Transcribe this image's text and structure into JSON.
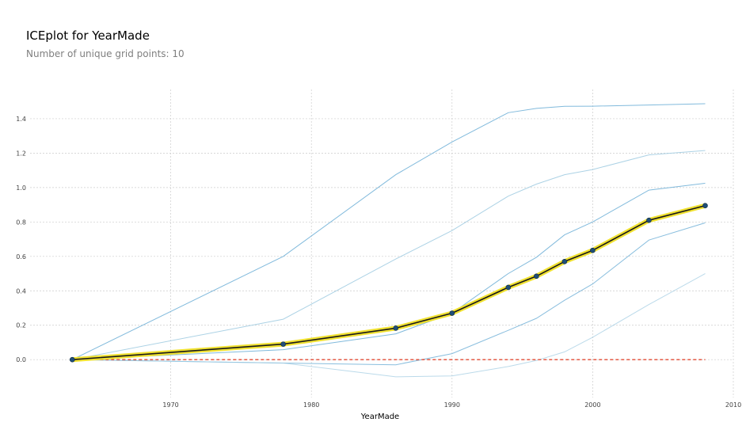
{
  "header": {
    "title": "ICEplot for YearMade",
    "subtitle": "Number of unique grid points: 10"
  },
  "chart_data": {
    "type": "line",
    "title": "ICEplot for YearMade",
    "subtitle": "Number of unique grid points: 10",
    "xlabel": "YearMade",
    "ylabel": "",
    "xlim": [
      1960,
      2010
    ],
    "ylim": [
      -0.22,
      1.57
    ],
    "x_ticks": [
      1970,
      1980,
      1990,
      2000,
      2010
    ],
    "y_ticks": [
      0.0,
      0.2,
      0.4,
      0.6,
      0.8,
      1.0,
      1.2,
      1.4
    ],
    "y_tick_labels": [
      "0.0",
      "0.2",
      "0.4",
      "0.6",
      "0.8",
      "1.0",
      "1.2",
      "1.4"
    ],
    "grid": true,
    "x": [
      1963,
      1978,
      1986,
      1990,
      1994,
      1996,
      1998,
      2000,
      2004,
      2008
    ],
    "series": [
      {
        "values": [
          0.0,
          0.6,
          1.075,
          1.265,
          1.435,
          1.46,
          1.472,
          1.473,
          1.48,
          1.487
        ],
        "color": "#6baed6",
        "opacity": 0.85
      },
      {
        "values": [
          0.0,
          0.235,
          0.585,
          0.75,
          0.95,
          1.02,
          1.075,
          1.105,
          1.19,
          1.215
        ],
        "color": "#9ecae1",
        "opacity": 0.85
      },
      {
        "values": [
          0.0,
          0.058,
          0.15,
          0.27,
          0.5,
          0.595,
          0.725,
          0.8,
          0.985,
          1.025
        ],
        "color": "#6baed6",
        "opacity": 0.85
      },
      {
        "values": [
          0.0,
          -0.02,
          -0.03,
          0.035,
          0.17,
          0.24,
          0.345,
          0.44,
          0.695,
          0.795
        ],
        "color": "#6baed6",
        "opacity": 0.8
      },
      {
        "values": [
          0.0,
          -0.02,
          -0.1,
          -0.095,
          -0.04,
          -0.005,
          0.045,
          0.13,
          0.32,
          0.5
        ],
        "color": "#9ecae1",
        "opacity": 0.7
      }
    ],
    "average": {
      "values": [
        0.0,
        0.09,
        0.183,
        0.27,
        0.42,
        0.485,
        0.57,
        0.635,
        0.81,
        0.895
      ],
      "line_color": "#1a1a1a",
      "highlight_color": "#f0e130",
      "marker_color": "#1f4e79"
    },
    "baseline": {
      "value": 0.0,
      "color": "#e34a33"
    }
  }
}
